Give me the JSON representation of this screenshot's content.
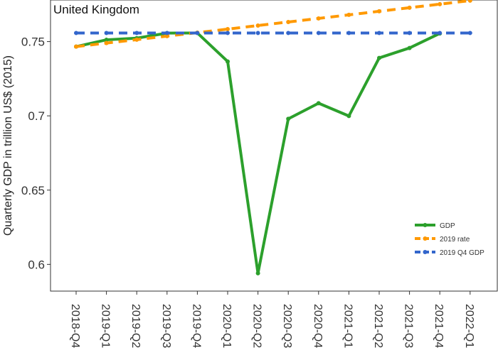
{
  "chart_data": {
    "type": "line",
    "title": "United Kingdom",
    "xlabel": "",
    "ylabel": "Quarterly GDP in trillion US$ (2015)",
    "categories": [
      "2018-Q4",
      "2019-Q1",
      "2019-Q2",
      "2019-Q3",
      "2019-Q4",
      "2020-Q1",
      "2020-Q2",
      "2020-Q3",
      "2020-Q4",
      "2021-Q1",
      "2021-Q2",
      "2021-Q3",
      "2021-Q4",
      "2022-Q1"
    ],
    "ylim": [
      0.582,
      0.778
    ],
    "yticks": [
      0.6,
      0.65,
      0.7,
      0.75
    ],
    "ytick_labels": [
      "0.6",
      "0.65",
      "0.7",
      "0.75"
    ],
    "grid": false,
    "legend_position": "bottom-right",
    "series": [
      {
        "name": "GDP",
        "color": "#2ca02c",
        "dash": "solid",
        "values": [
          0.7466,
          0.7512,
          0.7523,
          0.7557,
          0.7558,
          0.7366,
          0.594,
          0.698,
          0.7085,
          0.6999,
          0.739,
          0.7457,
          0.7555,
          null
        ]
      },
      {
        "name": "2019 rate",
        "color": "#ff9900",
        "dash": "dashed",
        "values": [
          0.7466,
          0.749,
          0.7513,
          0.7537,
          0.756,
          0.7584,
          0.7608,
          0.7632,
          0.7656,
          0.768,
          0.7704,
          0.7728,
          0.7752,
          0.7776
        ]
      },
      {
        "name": "2019 Q4 GDP",
        "color": "#3366cc",
        "dash": "dashed",
        "values": [
          0.7558,
          0.7558,
          0.7558,
          0.7558,
          0.7558,
          0.7558,
          0.7558,
          0.7558,
          0.7558,
          0.7558,
          0.7558,
          0.7558,
          0.7558,
          0.7558
        ]
      }
    ]
  }
}
